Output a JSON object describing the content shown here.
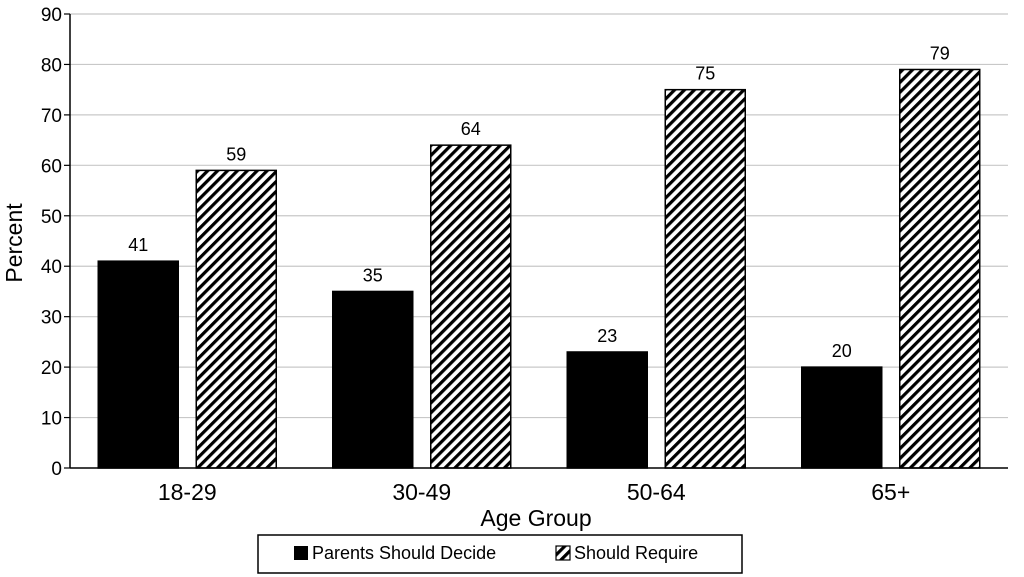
{
  "chart_data": {
    "type": "bar",
    "title": "",
    "xlabel": "Age Group",
    "ylabel": "Percent",
    "ylim": [
      0,
      90
    ],
    "ytick_step": 10,
    "grid": true,
    "legend_position": "bottom",
    "categories": [
      "18-29",
      "30-49",
      "50-64",
      "65+"
    ],
    "series": [
      {
        "name": "Parents Should Decide",
        "values": [
          41,
          35,
          23,
          20
        ],
        "fill": "solid",
        "color": "#000000"
      },
      {
        "name": "Should Require",
        "values": [
          59,
          64,
          75,
          79
        ],
        "fill": "diagonal-hatch",
        "color": "#000000"
      }
    ]
  }
}
